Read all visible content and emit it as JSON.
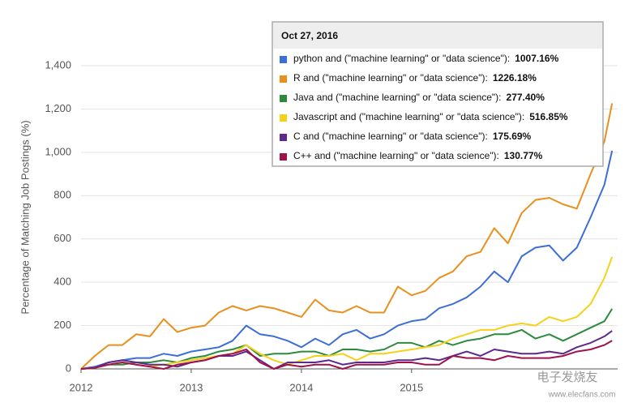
{
  "chart_data": {
    "type": "line",
    "y_label": "Percentage of Matching Job Postings (%)",
    "x": [
      2012,
      2012.125,
      2012.25,
      2012.375,
      2012.5,
      2012.625,
      2012.75,
      2012.875,
      2013,
      2013.125,
      2013.25,
      2013.375,
      2013.5,
      2013.625,
      2013.75,
      2013.875,
      2014,
      2014.125,
      2014.25,
      2014.375,
      2014.5,
      2014.625,
      2014.75,
      2014.875,
      2015,
      2015.125,
      2015.25,
      2015.375,
      2015.5,
      2015.625,
      2015.75,
      2015.875,
      2016,
      2016.125,
      2016.25,
      2016.375,
      2016.5,
      2016.625,
      2016.75,
      2016.82
    ],
    "xlim": [
      2012,
      2016.87
    ],
    "xticks": [
      2012,
      2013,
      2014,
      2015
    ],
    "ylim": [
      0,
      1400
    ],
    "yticks": [
      0,
      200,
      400,
      600,
      800,
      {
        "value": 1000,
        "label": "1,000"
      },
      {
        "value": 1200,
        "label": "1,200"
      },
      {
        "value": 1400,
        "label": "1,400"
      }
    ],
    "grid": true,
    "series": [
      {
        "name": "python and (\"machine learning\" or \"data science\")",
        "color": "#3c6fd6",
        "values": [
          0,
          10,
          30,
          40,
          50,
          50,
          70,
          60,
          80,
          90,
          100,
          130,
          200,
          160,
          150,
          130,
          100,
          140,
          110,
          160,
          180,
          140,
          160,
          200,
          220,
          230,
          280,
          300,
          330,
          380,
          450,
          400,
          520,
          560,
          570,
          500,
          560,
          700,
          850,
          1007.16
        ]
      },
      {
        "name": "R and (\"machine learning\" or \"data science\")",
        "color": "#e8901e",
        "values": [
          0,
          60,
          110,
          110,
          160,
          150,
          230,
          170,
          190,
          200,
          260,
          290,
          270,
          290,
          280,
          260,
          240,
          320,
          270,
          260,
          290,
          260,
          260,
          380,
          340,
          360,
          420,
          450,
          520,
          540,
          650,
          580,
          720,
          780,
          790,
          760,
          740,
          900,
          1050,
          1226.18
        ]
      },
      {
        "name": "Java and (\"machine learning\" or \"data science\")",
        "color": "#2e8b3e",
        "values": [
          0,
          5,
          20,
          20,
          30,
          30,
          40,
          30,
          50,
          60,
          80,
          90,
          110,
          60,
          70,
          70,
          80,
          80,
          60,
          90,
          90,
          80,
          90,
          120,
          120,
          100,
          130,
          110,
          130,
          140,
          160,
          160,
          180,
          140,
          160,
          130,
          160,
          190,
          220,
          277.4
        ]
      },
      {
        "name": "Javascript and (\"machine learning\" or \"data science\")",
        "color": "#f5d01c",
        "values": [
          0,
          5,
          20,
          30,
          20,
          10,
          20,
          30,
          40,
          50,
          60,
          70,
          110,
          70,
          40,
          20,
          40,
          60,
          60,
          70,
          40,
          70,
          70,
          80,
          90,
          100,
          110,
          140,
          160,
          180,
          180,
          200,
          210,
          200,
          240,
          220,
          240,
          300,
          420,
          516.85
        ]
      },
      {
        "name": "C and (\"machine learning\" or \"data science\")",
        "color": "#5c2a8c",
        "values": [
          0,
          5,
          30,
          40,
          30,
          20,
          20,
          10,
          30,
          40,
          60,
          60,
          80,
          40,
          0,
          30,
          30,
          30,
          40,
          20,
          30,
          30,
          30,
          40,
          40,
          50,
          40,
          60,
          80,
          60,
          90,
          80,
          70,
          70,
          80,
          70,
          100,
          120,
          150,
          175.69
        ]
      },
      {
        "name": "C++ and (\"machine learning\" or \"data science\")",
        "color": "#a0124a",
        "values": [
          0,
          5,
          20,
          30,
          20,
          10,
          0,
          20,
          30,
          40,
          60,
          70,
          90,
          30,
          0,
          20,
          10,
          20,
          20,
          0,
          20,
          20,
          20,
          30,
          30,
          20,
          20,
          60,
          50,
          50,
          40,
          60,
          50,
          50,
          50,
          60,
          80,
          90,
          110,
          130.77
        ]
      }
    ],
    "tooltip": {
      "date": "Oct 27, 2016",
      "separator": ":",
      "values": [
        1007.16,
        1226.18,
        277.4,
        516.85,
        175.69,
        130.77
      ],
      "value_labels": [
        "1007.16%",
        "1226.18%",
        "277.40%",
        "516.85%",
        "175.69%",
        "130.77%"
      ]
    },
    "watermark": [
      "电子发烧友",
      "www.elecfans.com"
    ]
  }
}
